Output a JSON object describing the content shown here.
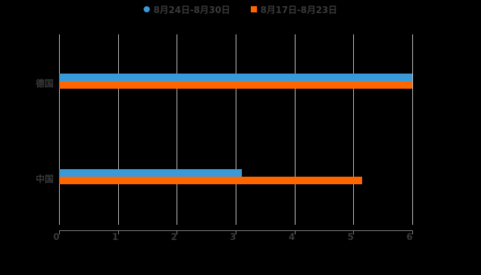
{
  "chart_data": {
    "type": "bar",
    "orientation": "horizontal",
    "title": "",
    "categories": [
      "德国",
      "中国"
    ],
    "series": [
      {
        "name": "8月24日-8月30日",
        "color": "#3a9ad9",
        "values": [
          6,
          3.1
        ]
      },
      {
        "name": "8月17日-8月23日",
        "color": "#ff6600",
        "values": [
          6,
          5.15
        ]
      }
    ],
    "xlabel": "",
    "ylabel": "",
    "xlim": [
      0,
      6
    ],
    "x_ticks": [
      "0",
      "1",
      "2",
      "3",
      "4",
      "5",
      "6"
    ],
    "grid": true,
    "legend_position": "top"
  },
  "legend": {
    "items": [
      {
        "label": "8月24日-8月30日",
        "color": "#3a9ad9",
        "shape": "circle"
      },
      {
        "label": "8月17日-8月23日",
        "color": "#ff6600",
        "shape": "square"
      }
    ]
  }
}
